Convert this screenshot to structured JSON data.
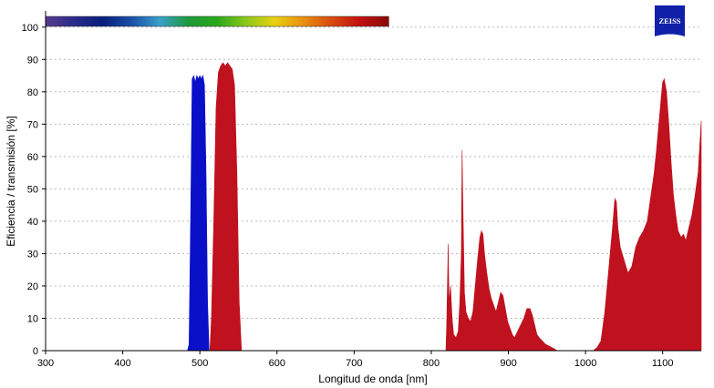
{
  "chart_data": {
    "type": "area",
    "xlabel": "Longitud de onda [nm]",
    "ylabel": "Eficiencia / transmisión [%]",
    "xlim": [
      300,
      1150
    ],
    "ylim": [
      0,
      105
    ],
    "x_ticks": [
      300,
      400,
      500,
      600,
      700,
      800,
      900,
      1000,
      1100
    ],
    "y_ticks": [
      0,
      10,
      20,
      30,
      40,
      50,
      60,
      70,
      80,
      90,
      100
    ],
    "grid": "horizontal",
    "logo_text": "ZEISS",
    "colors": {
      "blue_band": "#0a10c8",
      "red_band": "#c0111e",
      "logo": "#1020a8"
    },
    "spectrum_bar": {
      "range_nm": [
        300,
        745
      ],
      "stops": [
        "#5a3b8e",
        "#2a2a8a",
        "#0a1f7a",
        "#1a4fa8",
        "#3aa0c8",
        "#1a9a3a",
        "#2aa81a",
        "#8ac81a",
        "#e8d010",
        "#e89010",
        "#d84a10",
        "#c01010",
        "#8a0a0a"
      ]
    },
    "series": [
      {
        "color": "#0a10c8",
        "x": [
          484,
          486,
          488,
          490,
          492,
          494,
          496,
          498,
          500,
          502,
          504,
          506,
          508,
          510,
          512
        ],
        "y": [
          0,
          2,
          40,
          84,
          85,
          83,
          85,
          84,
          85,
          84,
          85,
          82,
          55,
          15,
          0
        ]
      },
      {
        "color": "#c0111e",
        "x": [
          513,
          515,
          518,
          521,
          524,
          527,
          530,
          533,
          536,
          539,
          542,
          545,
          548,
          551,
          554
        ],
        "y": [
          0,
          10,
          40,
          75,
          86,
          88,
          89,
          88,
          89,
          88,
          87,
          82,
          55,
          15,
          0
        ]
      },
      {
        "color": "#c0111e",
        "x": [
          819,
          820,
          822,
          823,
          825,
          827,
          829,
          832,
          835,
          837,
          839,
          840,
          841,
          843,
          845,
          848,
          851,
          854,
          857,
          860,
          863,
          865,
          867,
          869,
          872,
          875,
          878,
          881,
          884,
          887,
          890,
          893,
          896,
          899,
          902,
          905,
          908,
          912,
          916,
          920,
          924,
          928,
          931,
          934,
          937,
          940,
          944,
          948,
          952,
          956,
          960,
          963
        ],
        "y": [
          0,
          8,
          33,
          15,
          20,
          10,
          5,
          4,
          6,
          15,
          30,
          62,
          45,
          18,
          12,
          10,
          9,
          12,
          20,
          28,
          35,
          37,
          36,
          30,
          24,
          19,
          16,
          14,
          12,
          15,
          18,
          17,
          13,
          9,
          7,
          5,
          4,
          6,
          8,
          10,
          13,
          13,
          11,
          8,
          5,
          4,
          3,
          2,
          1.5,
          1,
          0.5,
          0
        ]
      },
      {
        "color": "#c0111e",
        "x": [
          1010,
          1015,
          1020,
          1025,
          1030,
          1035,
          1038,
          1040,
          1042,
          1045,
          1050,
          1055,
          1060,
          1065,
          1070,
          1075,
          1080,
          1083,
          1086,
          1089,
          1092,
          1095,
          1098,
          1100,
          1102,
          1105,
          1108,
          1111,
          1114,
          1117,
          1120,
          1124,
          1127,
          1130,
          1134,
          1138,
          1142,
          1146,
          1148,
          1150
        ],
        "y": [
          0,
          1,
          3,
          12,
          25,
          38,
          47,
          46,
          38,
          32,
          28,
          24,
          26,
          32,
          35,
          37,
          40,
          45,
          50,
          55,
          62,
          70,
          78,
          83,
          84,
          80,
          70,
          58,
          48,
          42,
          37,
          35,
          36,
          34,
          38,
          42,
          48,
          55,
          63,
          71
        ]
      }
    ]
  }
}
